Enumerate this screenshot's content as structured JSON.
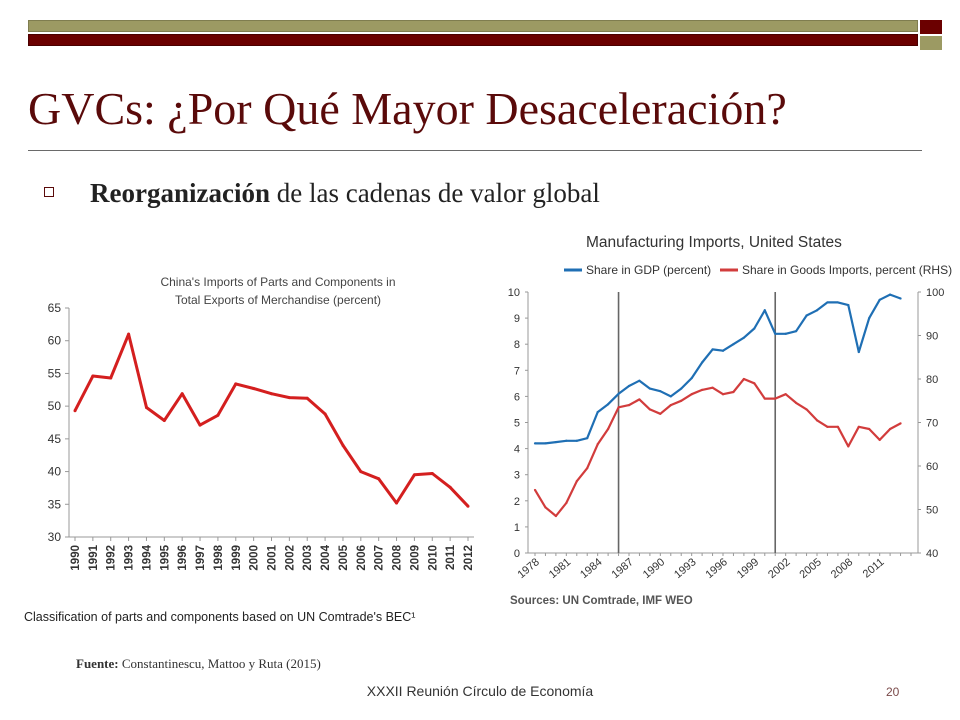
{
  "slide": {
    "title": "GVCs: ¿Por Qué Mayor Desaceleración?",
    "bullet_bold": "Reorganización",
    "bullet_rest": " de las cadenas de valor global",
    "source_label": "Fuente:",
    "source_text": "  Constantinescu, Mattoo y Ruta (2015)",
    "footer": "XXXII Reunión Círculo de Economía",
    "page_number": "20",
    "colors": {
      "title": "#5a0a0a",
      "olive_bar": "#9c9a63",
      "maroon_bar": "#6b0000"
    }
  },
  "chart_data": [
    {
      "type": "line",
      "title": "China's Imports of Parts and Components in Total Exports of Merchandise (percent)",
      "title_lines": [
        "China's Imports of Parts and Components in",
        "Total Exports of Merchandise (percent)"
      ],
      "footnote": "Classification  of parts and components based on UN Comtrade's BEC¹",
      "x": [
        "1990",
        "1991",
        "1992",
        "1993",
        "1994",
        "1995",
        "1996",
        "1997",
        "1998",
        "1999",
        "2000",
        "2001",
        "2002",
        "2003",
        "2004",
        "2005",
        "2006",
        "2007",
        "2008",
        "2009",
        "2010",
        "2011",
        "2012"
      ],
      "values": [
        49.3,
        54.6,
        54.3,
        61.0,
        49.8,
        47.8,
        51.9,
        47.1,
        48.6,
        53.4,
        52.7,
        51.9,
        51.3,
        51.2,
        48.8,
        44.0,
        40.0,
        38.9,
        35.2,
        39.5,
        39.7,
        37.6,
        34.7
      ],
      "ylim": [
        30,
        65
      ],
      "yticks": [
        30,
        35,
        40,
        45,
        50,
        55,
        60,
        65
      ],
      "color": "#d41f1f"
    },
    {
      "type": "line",
      "title": "Manufacturing Imports, United States",
      "sources": "Sources: UN Comtrade, IMF WEO",
      "x_tick_labels": [
        "1978",
        "1981",
        "1984",
        "1987",
        "1990",
        "1993",
        "1996",
        "1999",
        "2002",
        "2005",
        "2008",
        "2011"
      ],
      "x_range": [
        1978,
        2014
      ],
      "vertical_lines": [
        1986,
        2001
      ],
      "ylim_left": [
        0,
        10
      ],
      "yticks_left": [
        0,
        1,
        2,
        3,
        4,
        5,
        6,
        7,
        8,
        9,
        10
      ],
      "ylim_right": [
        40,
        100
      ],
      "yticks_right": [
        40,
        50,
        60,
        70,
        80,
        90,
        100
      ],
      "series": [
        {
          "name": "Share in GDP (percent)",
          "axis": "left",
          "color": "#1f6fb4",
          "x": [
            1978,
            1979,
            1980,
            1981,
            1982,
            1983,
            1984,
            1985,
            1986,
            1987,
            1988,
            1989,
            1990,
            1991,
            1992,
            1993,
            1994,
            1995,
            1996,
            1997,
            1998,
            1999,
            2000,
            2001,
            2002,
            2003,
            2004,
            2005,
            2006,
            2007,
            2008,
            2009,
            2010,
            2011,
            2012,
            2013
          ],
          "y": [
            4.2,
            4.2,
            4.25,
            4.3,
            4.3,
            4.4,
            5.4,
            5.7,
            6.1,
            6.4,
            6.6,
            6.3,
            6.2,
            6.0,
            6.3,
            6.7,
            7.3,
            7.8,
            7.75,
            8.0,
            8.25,
            8.6,
            9.3,
            8.4,
            8.4,
            8.5,
            9.1,
            9.3,
            9.6,
            9.6,
            9.5,
            7.7,
            9.0,
            9.7,
            9.9,
            9.75
          ]
        },
        {
          "name": "Share in Goods Imports, percent (RHS)",
          "axis": "right",
          "color": "#d23c3c",
          "x": [
            1978,
            1979,
            1980,
            1981,
            1982,
            1983,
            1984,
            1985,
            1986,
            1987,
            1988,
            1989,
            1990,
            1991,
            1992,
            1993,
            1994,
            1995,
            1996,
            1997,
            1998,
            1999,
            2000,
            2001,
            2002,
            2003,
            2004,
            2005,
            2006,
            2007,
            2008,
            2009,
            2010,
            2011,
            2012,
            2013
          ],
          "y": [
            54.5,
            50.5,
            48.5,
            51.5,
            56.5,
            59.5,
            65.0,
            68.5,
            73.5,
            74.0,
            75.3,
            73.0,
            72.0,
            74.0,
            75.0,
            76.5,
            77.5,
            78.0,
            76.5,
            77.0,
            80.0,
            79.0,
            75.5,
            75.5,
            76.5,
            74.5,
            73.0,
            70.5,
            69.0,
            69.0,
            64.5,
            69.0,
            68.5,
            66.0,
            68.5,
            69.8
          ]
        }
      ]
    }
  ]
}
